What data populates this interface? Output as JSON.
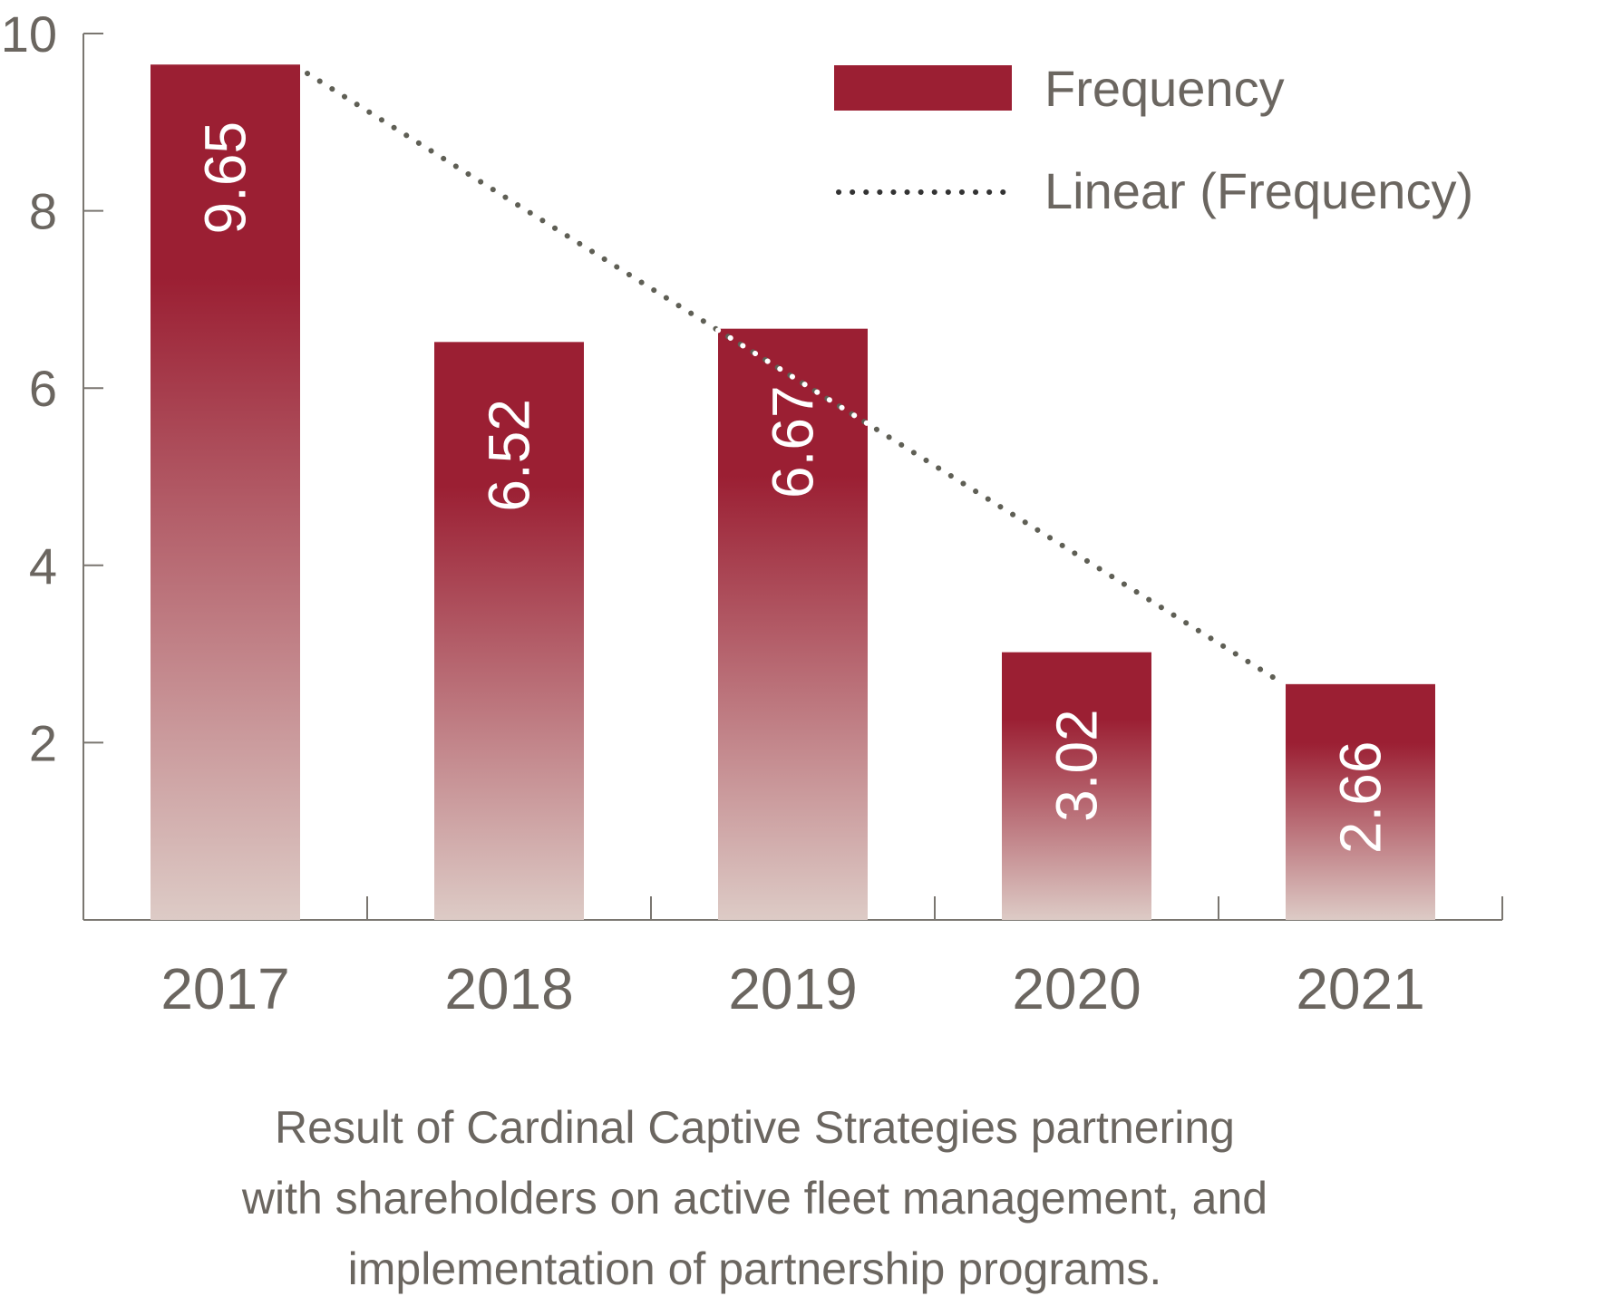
{
  "chart_data": {
    "type": "bar",
    "categories": [
      "2017",
      "2018",
      "2019",
      "2020",
      "2021"
    ],
    "series": [
      {
        "name": "Frequency",
        "values": [
          9.65,
          6.52,
          6.67,
          3.02,
          2.66
        ]
      }
    ],
    "data_labels": [
      "9.65",
      "6.52",
      "6.67",
      "3.02",
      "2.66"
    ],
    "trendline": {
      "name": "Linear (Frequency)",
      "type": "linear",
      "start": 9.55,
      "end": 2.7
    },
    "y_ticks": [
      2,
      4,
      6,
      8,
      10
    ],
    "ylim": [
      0,
      10
    ],
    "legend": {
      "position": "top-right",
      "entries": [
        "Frequency",
        "Linear (Frequency)"
      ]
    },
    "grid": false,
    "colors": {
      "bar_top": "#9b1f33",
      "bar_bottom": "#ddcbc6",
      "trend": "#5f5f55",
      "axis": "#7a7670",
      "text": "#6b6660"
    }
  },
  "caption": [
    "Result of Cardinal Captive Strategies partnering",
    "with shareholders on active fleet management, and",
    "implementation of partnership programs."
  ]
}
